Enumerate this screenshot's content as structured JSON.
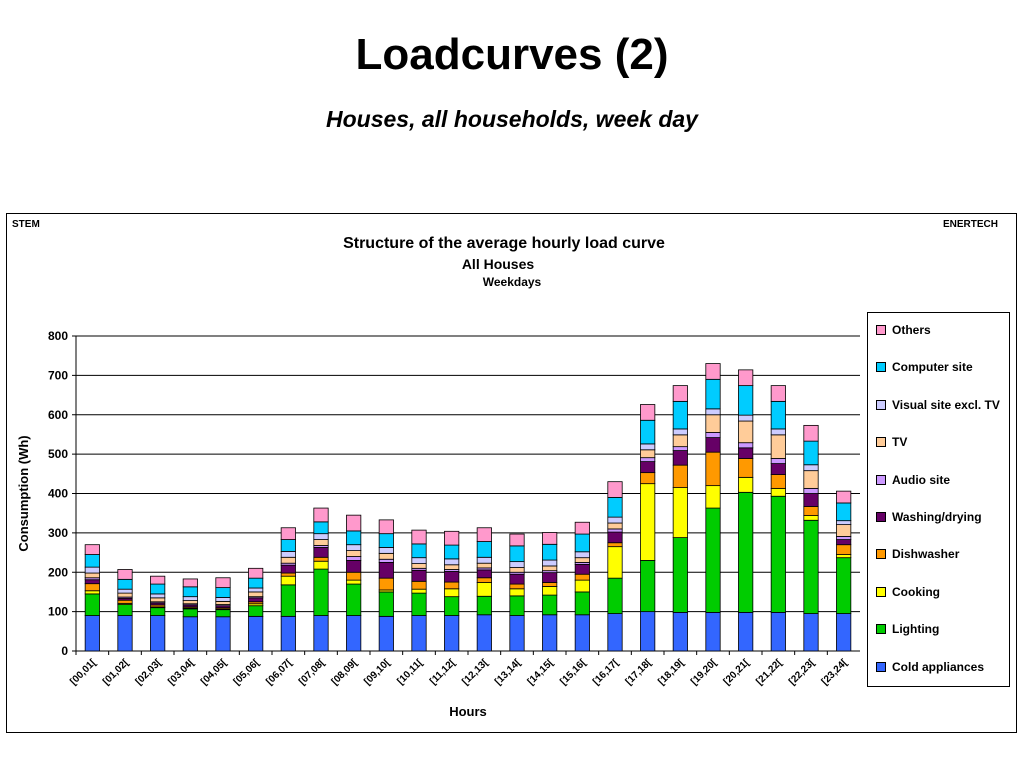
{
  "slide": {
    "title": "Loadcurves (2)",
    "subtitle": "Houses, all households, week day"
  },
  "corners": {
    "left": "STEM",
    "right": "ENERTECH"
  },
  "chart_data": {
    "type": "bar",
    "stacked": true,
    "title": "Structure of the average hourly load curve",
    "subtitle": "All Houses",
    "subtitle2": "Weekdays",
    "xlabel": "Hours",
    "ylabel": "Consumption (Wh)",
    "ylim": [
      0,
      800
    ],
    "yticks": [
      0,
      100,
      200,
      300,
      400,
      500,
      600,
      700,
      800
    ],
    "grid": true,
    "legend_position": "right",
    "categories": [
      "[00,01[",
      "[01,02[",
      "[02,03[",
      "[03,04[",
      "[04,05[",
      "[05,06[",
      "[06,07[",
      "[07,08[",
      "[08,09[",
      "[09,10[",
      "[10,11[",
      "[11,12[",
      "[12,13[",
      "[13,14[",
      "[14,15[",
      "[15,16[",
      "[16,17[",
      "[17,18[",
      "[18,19[",
      "[19,20[",
      "[20,21[",
      "[21,22[",
      "[22,23[",
      "[23,24["
    ],
    "series": [
      {
        "name": "Cold appliances",
        "color": "#3366FF",
        "values": [
          90,
          90,
          90,
          87,
          87,
          88,
          88,
          90,
          90,
          88,
          90,
          90,
          92,
          90,
          92,
          92,
          95,
          100,
          98,
          98,
          98,
          98,
          95,
          95
        ]
      },
      {
        "name": "Lighting",
        "color": "#00CC00",
        "values": [
          55,
          28,
          20,
          20,
          18,
          27,
          80,
          118,
          80,
          62,
          57,
          48,
          47,
          50,
          50,
          58,
          90,
          130,
          190,
          265,
          305,
          295,
          237,
          142
        ]
      },
      {
        "name": "Cooking",
        "color": "#FFFF00",
        "values": [
          8,
          3,
          2,
          2,
          2,
          5,
          22,
          20,
          10,
          5,
          10,
          20,
          35,
          18,
          22,
          30,
          80,
          195,
          127,
          57,
          38,
          20,
          12,
          8
        ]
      },
      {
        "name": "Dishwasher",
        "color": "#FF9900",
        "values": [
          18,
          8,
          5,
          3,
          3,
          5,
          8,
          10,
          20,
          30,
          20,
          17,
          12,
          12,
          10,
          15,
          10,
          28,
          57,
          85,
          48,
          35,
          23,
          25
        ]
      },
      {
        "name": "Washing/drying",
        "color": "#660066",
        "values": [
          10,
          5,
          5,
          5,
          5,
          10,
          20,
          25,
          30,
          40,
          28,
          27,
          20,
          25,
          25,
          25,
          27,
          28,
          37,
          37,
          27,
          28,
          33,
          13
        ]
      },
      {
        "name": "Audio site",
        "color": "#CC99FF",
        "values": [
          5,
          3,
          3,
          3,
          3,
          3,
          5,
          5,
          10,
          8,
          5,
          5,
          5,
          5,
          5,
          5,
          8,
          10,
          10,
          13,
          13,
          13,
          13,
          8
        ]
      },
      {
        "name": "TV",
        "color": "#FFCC99",
        "values": [
          12,
          10,
          10,
          8,
          8,
          12,
          15,
          15,
          15,
          15,
          12,
          12,
          12,
          12,
          12,
          12,
          15,
          20,
          30,
          45,
          55,
          60,
          45,
          30
        ]
      },
      {
        "name": "Visual site excl. TV",
        "color": "#CCCCFF",
        "values": [
          15,
          10,
          10,
          10,
          10,
          10,
          15,
          15,
          15,
          15,
          15,
          15,
          15,
          15,
          15,
          15,
          15,
          15,
          15,
          15,
          15,
          15,
          15,
          10
        ]
      },
      {
        "name": "Computer site",
        "color": "#00CCFF",
        "values": [
          32,
          25,
          25,
          25,
          25,
          25,
          30,
          30,
          35,
          35,
          35,
          35,
          40,
          40,
          40,
          45,
          50,
          60,
          70,
          75,
          75,
          70,
          60,
          45
        ]
      },
      {
        "name": "Others",
        "color": "#FF99CC",
        "values": [
          25,
          25,
          20,
          20,
          25,
          25,
          30,
          35,
          40,
          35,
          35,
          35,
          35,
          30,
          30,
          30,
          40,
          40,
          40,
          40,
          40,
          40,
          40,
          30
        ]
      }
    ]
  }
}
